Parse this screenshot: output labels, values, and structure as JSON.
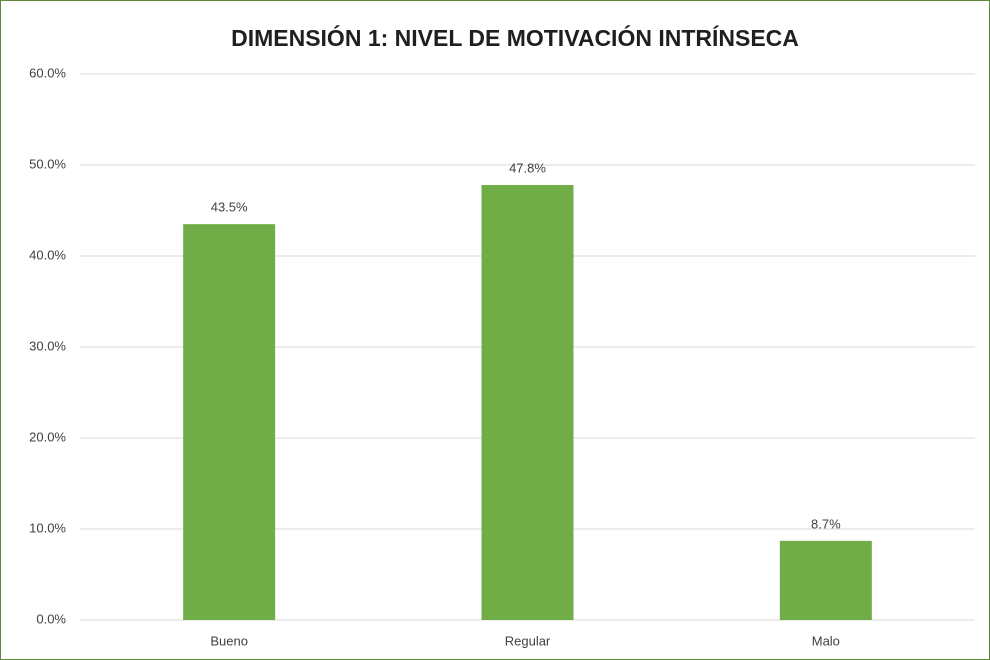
{
  "chart_data": {
    "type": "bar",
    "title": "DIMENSIÓN 1: NIVEL DE MOTIVACIÓN INTRÍNSECA",
    "categories": [
      "Bueno",
      "Regular",
      "Malo"
    ],
    "values": [
      43.5,
      47.8,
      8.7
    ],
    "value_labels": [
      "43.5%",
      "47.8%",
      "8.7%"
    ],
    "color": "#70ad47",
    "ylim": [
      0,
      60
    ],
    "yticks": [
      {
        "value": 0,
        "label": "0.0%"
      },
      {
        "value": 10,
        "label": "10.0%"
      },
      {
        "value": 20,
        "label": "20.0%"
      },
      {
        "value": 30,
        "label": "30.0%"
      },
      {
        "value": 40,
        "label": "40.0%"
      },
      {
        "value": 50,
        "label": "50.0%"
      },
      {
        "value": 60,
        "label": "60.0%"
      }
    ],
    "grid": true
  }
}
